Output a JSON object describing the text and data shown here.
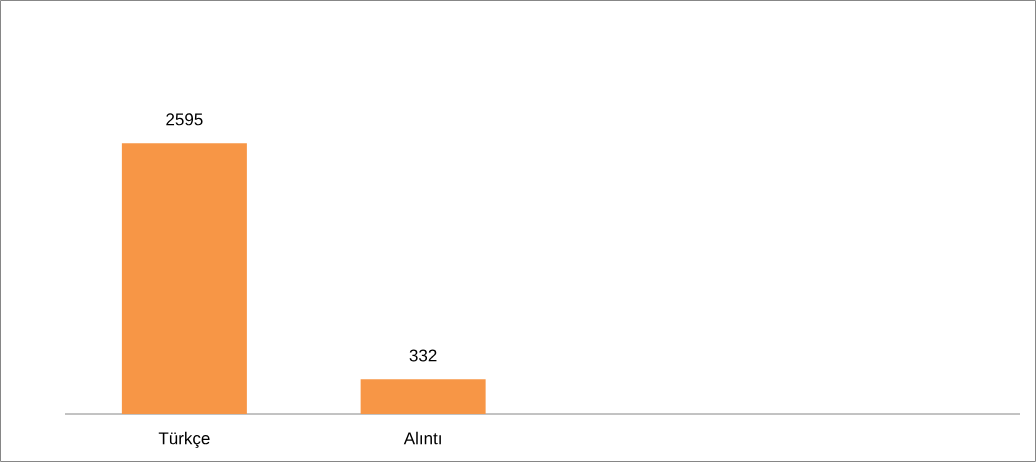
{
  "chart_data": {
    "type": "bar",
    "categories": [
      "Türkçe",
      "Alıntı",
      null,
      null
    ],
    "values": [
      2595,
      332,
      null,
      null
    ],
    "color": "#f79646",
    "data_labels": true
  }
}
